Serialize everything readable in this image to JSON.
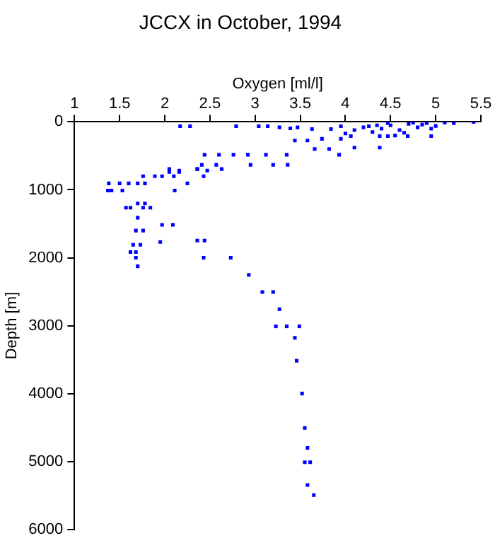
{
  "chart_data": {
    "type": "scatter",
    "title": "JCCX in October, 1994",
    "xlabel": "Oxygen [ml/l]",
    "ylabel": "Depth [m]",
    "xlim": [
      1,
      5.5
    ],
    "xticks": [
      1,
      1.5,
      2,
      2.5,
      3,
      3.5,
      4,
      4.5,
      5,
      5.5
    ],
    "ylim": [
      6000,
      0
    ],
    "yticks": [
      0,
      1000,
      2000,
      3000,
      4000,
      5000,
      6000
    ],
    "grid": false,
    "legend": false,
    "marker": "square",
    "series": [
      {
        "color": "#0000ff",
        "x": [
          5.42,
          5.2,
          5.1,
          5.0,
          4.95,
          4.9,
          4.85,
          4.8,
          4.75,
          4.7,
          4.65,
          4.6,
          4.55,
          4.5,
          4.47,
          4.4,
          4.35,
          4.3,
          4.26,
          4.2,
          4.1,
          4.0,
          3.95,
          4.06,
          4.38,
          4.47,
          4.69,
          4.95,
          4.1,
          4.38,
          3.93,
          3.66,
          3.82,
          3.74,
          3.95,
          3.63,
          3.84,
          3.44,
          3.58,
          3.47,
          3.39,
          3.27,
          3.14,
          3.04,
          2.79,
          2.17,
          2.28,
          2.44,
          2.6,
          2.76,
          2.92,
          3.12,
          3.35,
          2.95,
          3.2,
          3.36,
          2.41,
          2.57,
          2.36,
          2.63,
          2.05,
          2.36,
          2.25,
          2.47,
          2.16,
          2.43,
          2.05,
          2.16,
          1.97,
          2.1,
          1.76,
          1.89,
          1.7,
          1.78,
          1.5,
          1.6,
          1.38,
          1.37,
          1.41,
          1.53,
          2.11,
          1.7,
          1.78,
          1.57,
          1.62,
          1.76,
          1.84,
          1.7,
          1.68,
          1.76,
          1.97,
          2.09,
          1.95,
          1.65,
          1.73,
          1.62,
          1.68,
          1.68,
          1.7,
          2.36,
          2.44,
          2.43,
          2.73,
          2.93,
          3.08,
          3.2,
          3.27,
          3.23,
          3.35,
          3.49,
          3.44,
          3.46,
          3.52,
          3.55,
          3.58,
          3.55,
          3.61,
          3.58,
          3.65
        ],
        "values": [
          0,
          20,
          10,
          60,
          100,
          20,
          40,
          80,
          10,
          30,
          160,
          120,
          200,
          50,
          20,
          100,
          50,
          150,
          63,
          80,
          120,
          170,
          63,
          210,
          210,
          210,
          210,
          210,
          379,
          379,
          484,
          400,
          400,
          250,
          250,
          105,
          105,
          274,
          274,
          80,
          95,
          80,
          63,
          63,
          63,
          63,
          63,
          484,
          484,
          484,
          484,
          484,
          484,
          632,
          632,
          632,
          632,
          632,
          695,
          695,
          695,
          695,
          905,
          716,
          716,
          800,
          737,
          737,
          800,
          800,
          800,
          800,
          905,
          905,
          905,
          905,
          905,
          1010,
          1010,
          1010,
          1010,
          1200,
          1200,
          1263,
          1263,
          1263,
          1263,
          1410,
          1600,
          1600,
          1516,
          1516,
          1768,
          1810,
          1810,
          1916,
          1916,
          2000,
          2126,
          1747,
          1747,
          2000,
          2000,
          2253,
          2505,
          2505,
          2758,
          3010,
          3010,
          3010,
          3179,
          3516,
          4000,
          4505,
          4800,
          5010,
          5010,
          5347,
          5495
        ]
      }
    ]
  }
}
